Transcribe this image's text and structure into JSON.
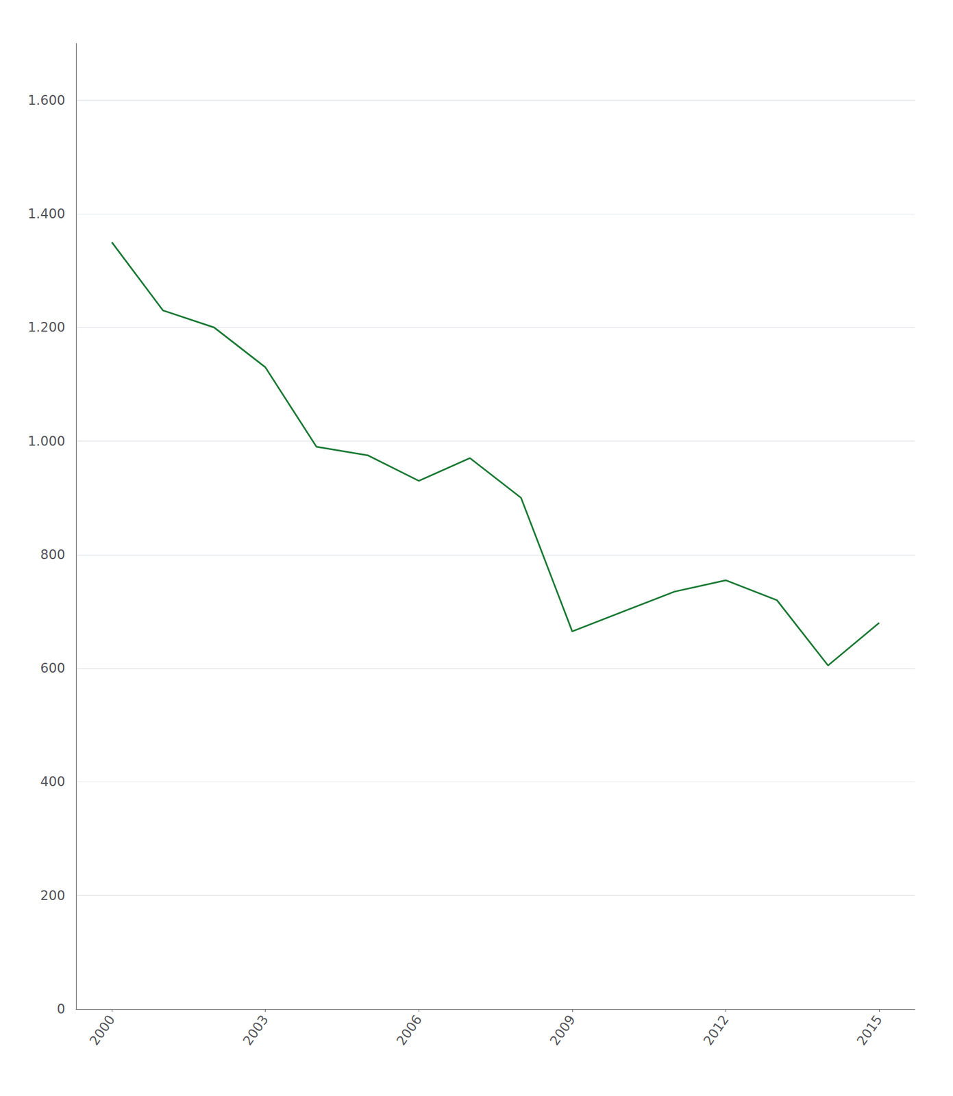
{
  "chart_data": {
    "type": "line",
    "x": [
      2000,
      2001,
      2002,
      2003,
      2004,
      2005,
      2006,
      2007,
      2008,
      2009,
      2010,
      2011,
      2012,
      2013,
      2014,
      2015
    ],
    "values": [
      1350,
      1230,
      1200,
      1130,
      990,
      975,
      930,
      970,
      900,
      665,
      700,
      735,
      755,
      720,
      605,
      680
    ],
    "color": "#1a7a34",
    "xlim": [
      1999.3,
      2015.7
    ],
    "xticks": [
      2000,
      2003,
      2006,
      2009,
      2012,
      2015
    ],
    "ylim": [
      0,
      1700
    ],
    "yticks": [
      0,
      200,
      400,
      600,
      800,
      {
        "value": 1000,
        "label": "1.000"
      },
      {
        "value": 1200,
        "label": "1.200"
      },
      {
        "value": 1400,
        "label": "1.400"
      },
      {
        "value": 1600,
        "label": "1.600"
      }
    ],
    "grid": true
  }
}
